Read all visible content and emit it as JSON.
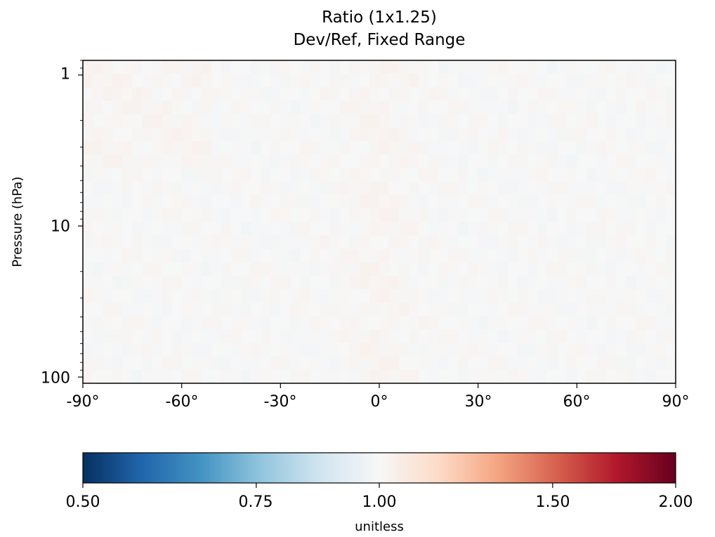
{
  "chart_data": {
    "type": "heatmap",
    "title": "Ratio (1x1.25)",
    "subtitle": "Dev/Ref, Fixed Range",
    "xlabel": "",
    "ylabel": "Pressure (hPa)",
    "x_range": [
      -90,
      90
    ],
    "x_ticks": [
      -90,
      -60,
      -30,
      0,
      30,
      60,
      90
    ],
    "x_tick_labels": [
      "-90°",
      "-60°",
      "-30°",
      "0°",
      "30°",
      "60°",
      "90°"
    ],
    "y_scale": "log",
    "y_inverted": true,
    "y_range": [
      0.8,
      110
    ],
    "y_ticks": [
      1,
      10,
      100
    ],
    "y_tick_labels": [
      "1",
      "10",
      "100"
    ],
    "value_summary": "ratio ≈ 1.00 everywhere (range roughly 0.98–1.03)",
    "colorbar": {
      "colormap": "RdBu_r",
      "range": [
        0.5,
        2.0
      ],
      "scale": "log",
      "ticks": [
        0.5,
        0.75,
        1.0,
        1.5,
        2.0
      ],
      "tick_labels": [
        "0.50",
        "0.75",
        "1.00",
        "1.50",
        "2.00"
      ],
      "label": "unitless"
    },
    "grid": false
  }
}
